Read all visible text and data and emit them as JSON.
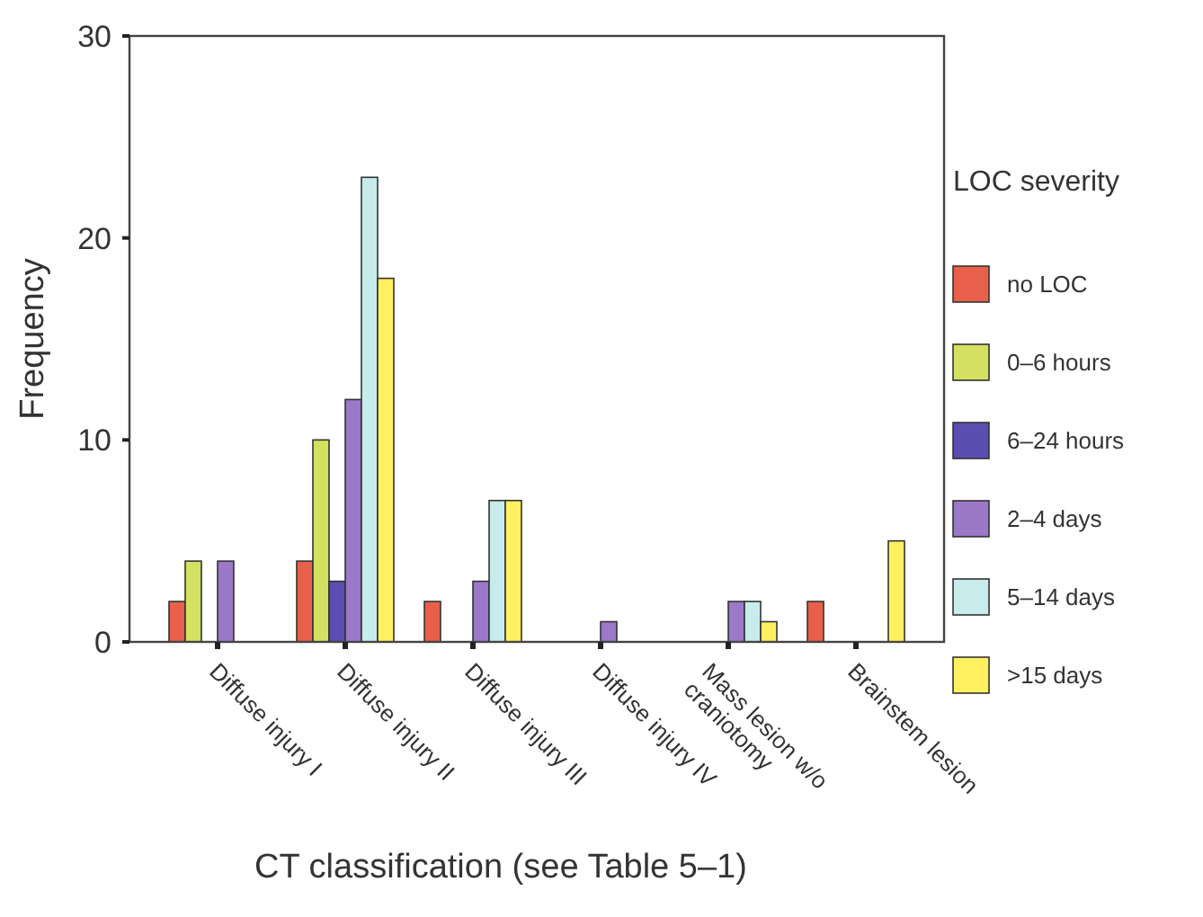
{
  "chart_data": {
    "type": "bar",
    "xlabel": "CT classification (see Table 5–1)",
    "ylabel": "Frequency",
    "legend_title": "LOC severity",
    "categories": [
      "Diffuse injury I",
      "Diffuse injury II",
      "Diffuse injury III",
      "Diffuse injury IV",
      "Mass lesion w/o craniotomy",
      "Brainstem lesion"
    ],
    "series": [
      {
        "name": "no LOC",
        "color": "#e8604a",
        "values": [
          2,
          4,
          2,
          0,
          0,
          2
        ]
      },
      {
        "name": "0–6 hours",
        "color": "#d4e060",
        "values": [
          4,
          10,
          0,
          0,
          0,
          0
        ]
      },
      {
        "name": "6–24 hours",
        "color": "#5a4fb0",
        "values": [
          0,
          3,
          0,
          0,
          0,
          0
        ]
      },
      {
        "name": "2–4 days",
        "color": "#9b78c8",
        "values": [
          4,
          12,
          3,
          1,
          2,
          0
        ]
      },
      {
        "name": "5–14 days",
        "color": "#c8ecec",
        "values": [
          0,
          23,
          7,
          0,
          2,
          0
        ]
      },
      {
        "name": ">15 days",
        "color": "#fff060",
        "values": [
          0,
          18,
          7,
          0,
          1,
          5
        ]
      }
    ],
    "ylim": [
      0,
      30
    ],
    "yticks": [
      0,
      10,
      20,
      30
    ],
    "legend": "right",
    "grid": false
  }
}
